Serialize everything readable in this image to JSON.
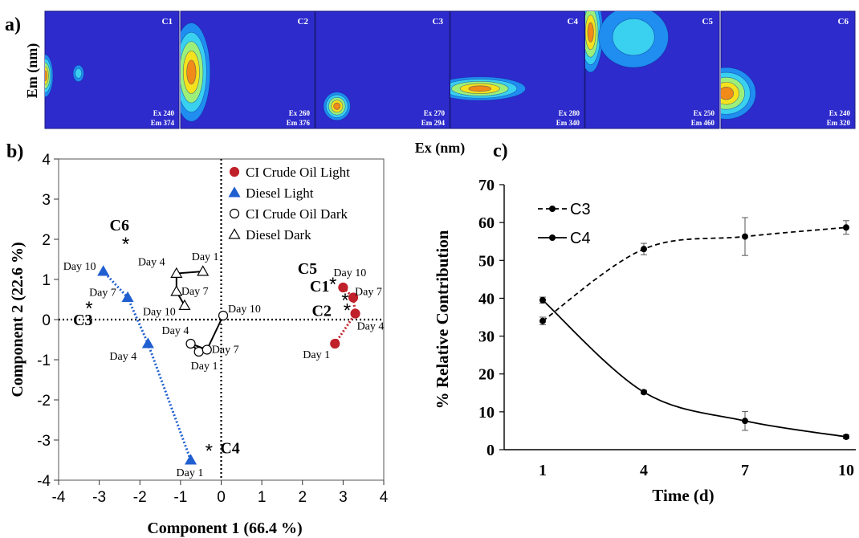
{
  "figure": {
    "panel_a_label": "a)",
    "panel_b_label": "b)",
    "panel_c_label": "c)"
  },
  "chart_data": [
    {
      "type": "heatmap",
      "panel": "a",
      "ylabel": "Em (nm)",
      "xlabel": "Ex (nm)",
      "colors": [
        "#2d2bcc",
        "#1f8ef0",
        "#3ad0f0",
        "#9cf07a",
        "#f5e21c",
        "#f08a18"
      ],
      "components": [
        {
          "name": "C1",
          "ex": "Ex 240",
          "em": "Em 374"
        },
        {
          "name": "C2",
          "ex": "Ex 260",
          "em": "Em 376"
        },
        {
          "name": "C3",
          "ex": "Ex 270",
          "em": "Em 294"
        },
        {
          "name": "C4",
          "ex": "Ex 280",
          "em": "Em 340"
        },
        {
          "name": "C5",
          "ex": "Ex 250",
          "em": "Em 460"
        },
        {
          "name": "C6",
          "ex": "Ex 240",
          "em": "Em 320"
        }
      ]
    },
    {
      "type": "scatter",
      "panel": "b",
      "xlabel": "Component 1  (66.4 %)",
      "ylabel": "Component 2  (22.6 %)",
      "xlim": [
        -4,
        4
      ],
      "ylim": [
        -4,
        4
      ],
      "xticks": [
        -4,
        -3,
        -2,
        -1,
        0,
        1,
        2,
        3,
        4
      ],
      "yticks": [
        -4,
        -3,
        -2,
        -1,
        0,
        1,
        2,
        3,
        4
      ],
      "series": [
        {
          "name": "CI Crude Oil Light",
          "marker": "circle-filled",
          "color": "#c0202a",
          "line": "dotted",
          "points": [
            {
              "label": "Day 1",
              "x": 2.8,
              "y": -0.6
            },
            {
              "label": "Day 4",
              "x": 3.3,
              "y": 0.15
            },
            {
              "label": "Day 7",
              "x": 3.25,
              "y": 0.55
            },
            {
              "label": "Day 10",
              "x": 3.0,
              "y": 0.8
            }
          ]
        },
        {
          "name": "Diesel Light",
          "marker": "triangle-filled",
          "color": "#1f5fd0",
          "line": "dotted",
          "points": [
            {
              "label": "Day 1",
              "x": -0.75,
              "y": -3.5
            },
            {
              "label": "Day 4",
              "x": -1.8,
              "y": -0.6
            },
            {
              "label": "Day 7",
              "x": -2.3,
              "y": 0.55
            },
            {
              "label": "Day 10",
              "x": -2.9,
              "y": 1.2
            }
          ]
        },
        {
          "name": "CI Crude Oil Dark",
          "marker": "circle-open",
          "color": "#000000",
          "line": "solid",
          "points": [
            {
              "label": "Day 1",
              "x": -0.55,
              "y": -0.8
            },
            {
              "label": "Day 4",
              "x": -0.75,
              "y": -0.6
            },
            {
              "label": "Day 7",
              "x": -0.35,
              "y": -0.75
            },
            {
              "label": "Day 10",
              "x": 0.05,
              "y": 0.1
            }
          ]
        },
        {
          "name": "Diesel Dark",
          "marker": "triangle-open",
          "color": "#000000",
          "line": "solid",
          "points": [
            {
              "label": "Day 1",
              "x": -0.45,
              "y": 1.2
            },
            {
              "label": "Day 4",
              "x": -1.1,
              "y": 1.15
            },
            {
              "label": "Day 7",
              "x": -1.1,
              "y": 0.7
            },
            {
              "label": "Day 10",
              "x": -0.9,
              "y": 0.35
            }
          ]
        }
      ],
      "components": [
        {
          "name": "C1",
          "x": 3.05,
          "y": 0.5
        },
        {
          "name": "C2",
          "x": 3.1,
          "y": 0.25
        },
        {
          "name": "C3",
          "x": -3.25,
          "y": 0.3
        },
        {
          "name": "C4",
          "x": -0.3,
          "y": -3.25
        },
        {
          "name": "C5",
          "x": 2.75,
          "y": 0.9
        },
        {
          "name": "C6",
          "x": -2.35,
          "y": 1.9
        }
      ]
    },
    {
      "type": "line",
      "panel": "c",
      "xlabel": "Time (d)",
      "ylabel": "% Relative Contribution",
      "categories": [
        1,
        4,
        7,
        10
      ],
      "ylim": [
        0,
        70
      ],
      "yticks": [
        0,
        10,
        20,
        30,
        40,
        50,
        60,
        70
      ],
      "legend_position": "top-left",
      "series": [
        {
          "name": "C3",
          "style": "dashed",
          "values": [
            34,
            53,
            56.3,
            58.7
          ],
          "errors": [
            1.0,
            1.5,
            5.0,
            1.8
          ]
        },
        {
          "name": "C4",
          "style": "solid",
          "values": [
            39.5,
            15.2,
            7.6,
            3.4
          ],
          "errors": [
            0.8,
            0.5,
            2.5,
            0.5
          ]
        }
      ]
    }
  ]
}
